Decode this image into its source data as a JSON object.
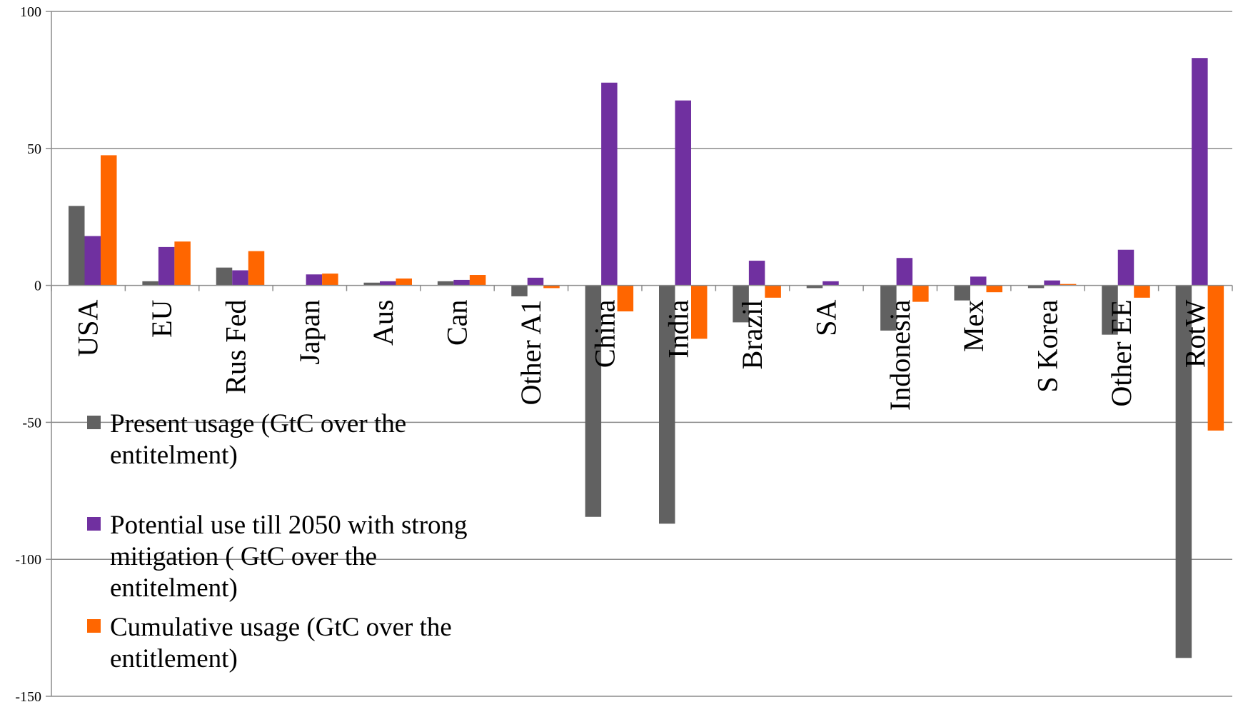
{
  "chart_data": {
    "type": "bar",
    "title": "",
    "xlabel": "",
    "ylabel": "",
    "ylim": [
      -150,
      100
    ],
    "yticks": [
      100,
      50,
      0,
      -50,
      -100,
      -150
    ],
    "grid": true,
    "legend_position": "bottom-left",
    "categories": [
      "USA",
      "EU",
      "Rus Fed",
      "Japan",
      "Aus",
      "Can",
      "Other A1",
      "China",
      "India",
      "Brazil",
      "SA",
      "Indonesia",
      "Mex",
      "S Korea",
      "Other EE",
      "RotW"
    ],
    "series": [
      {
        "name": "Present usage (GtC over the entitelment)",
        "color": "#616161",
        "values": [
          29,
          1.5,
          6.5,
          0,
          1,
          1.5,
          -4,
          -84.5,
          -87,
          -13.5,
          -1,
          -16.5,
          -5.5,
          -1,
          -18,
          -136
        ]
      },
      {
        "name": "Potential use till 2050 with strong mitigation ( GtC over the entitelment)",
        "color": "#7030a0",
        "values": [
          18,
          14,
          5.5,
          4,
          1.5,
          2,
          2.8,
          74,
          67.5,
          9,
          1.5,
          10,
          3.2,
          1.8,
          13,
          83
        ]
      },
      {
        "name": "Cumulative usage (GtC over the entitlement)",
        "color": "#ff6600",
        "values": [
          47.5,
          16,
          12.5,
          4.3,
          2.5,
          3.8,
          -1,
          -9.5,
          -19.5,
          -4.5,
          0,
          -6,
          -2.5,
          0.5,
          -4.5,
          -53
        ]
      }
    ],
    "legend_lines": [
      [
        "Present usage (GtC over the",
        "entitelment)"
      ],
      [
        "Potential use till 2050 with strong",
        "mitigation ( GtC over the",
        "entitelment)"
      ],
      [
        "Cumulative usage (GtC over the",
        "entitlement)"
      ]
    ]
  }
}
